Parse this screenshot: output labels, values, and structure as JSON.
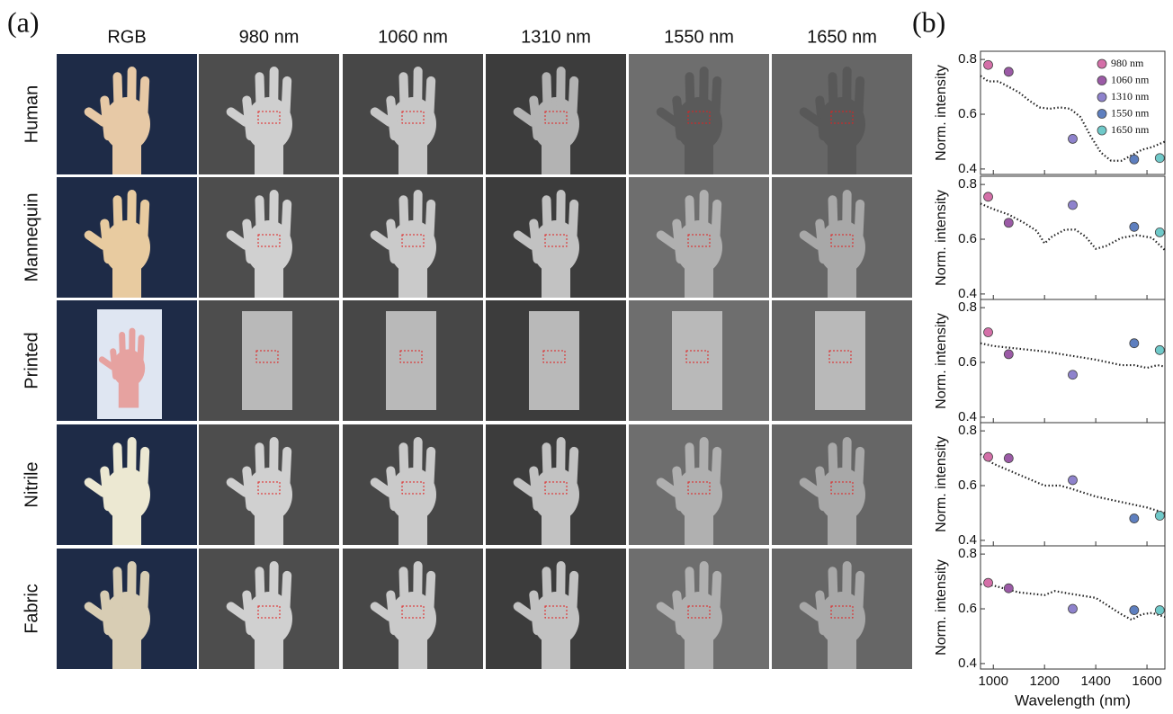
{
  "panel_a": {
    "label": "(a)",
    "columns": [
      "RGB",
      "980 nm",
      "1060 nm",
      "1310 nm",
      "1550 nm",
      "1650 nm"
    ],
    "rows": [
      "Human",
      "Mannequin",
      "Printed",
      "Nitrile",
      "Fabric"
    ]
  },
  "panel_b": {
    "label": "(b)"
  },
  "chart_data": [
    {
      "type": "scatter",
      "ylabel": "Norm. intensity",
      "xlim": [
        950,
        1670
      ],
      "xticks": [
        1000,
        1200,
        1400,
        1600
      ],
      "ylim": [
        0.38,
        0.83
      ],
      "yticks": [
        0.4,
        0.6,
        0.8
      ],
      "legend": "upper right",
      "series": [
        {
          "name": "980 nm",
          "color": "#d46fa8",
          "x": [
            980
          ],
          "values": [
            0.78
          ]
        },
        {
          "name": "1060 nm",
          "color": "#9b5aa6",
          "x": [
            1060
          ],
          "values": [
            0.755
          ]
        },
        {
          "name": "1310 nm",
          "color": "#8e82cc",
          "x": [
            1310
          ],
          "values": [
            0.51
          ]
        },
        {
          "name": "1550 nm",
          "color": "#5e7fbf",
          "x": [
            1550
          ],
          "values": [
            0.435
          ]
        },
        {
          "name": "1650 nm",
          "color": "#6fc9c9",
          "x": [
            1650
          ],
          "values": [
            0.44
          ]
        }
      ],
      "curve": {
        "color": "#222222",
        "x": [
          950,
          980,
          1020,
          1060,
          1100,
          1140,
          1180,
          1220,
          1260,
          1300,
          1340,
          1380,
          1420,
          1460,
          1500,
          1540,
          1580,
          1620,
          1670
        ],
        "values": [
          0.74,
          0.72,
          0.72,
          0.7,
          0.68,
          0.65,
          0.625,
          0.62,
          0.625,
          0.62,
          0.59,
          0.52,
          0.46,
          0.43,
          0.43,
          0.45,
          0.47,
          0.48,
          0.5
        ]
      }
    },
    {
      "type": "scatter",
      "ylabel": "Norm. intensity",
      "xlim": [
        950,
        1670
      ],
      "xticks": [
        1000,
        1200,
        1400,
        1600
      ],
      "ylim": [
        0.38,
        0.83
      ],
      "yticks": [
        0.4,
        0.6,
        0.8
      ],
      "series": [
        {
          "color": "#d46fa8",
          "x": [
            980
          ],
          "values": [
            0.755
          ]
        },
        {
          "color": "#9b5aa6",
          "x": [
            1060
          ],
          "values": [
            0.66
          ]
        },
        {
          "color": "#8e82cc",
          "x": [
            1310
          ],
          "values": [
            0.725
          ]
        },
        {
          "color": "#5e7fbf",
          "x": [
            1550
          ],
          "values": [
            0.645
          ]
        },
        {
          "color": "#6fc9c9",
          "x": [
            1650
          ],
          "values": [
            0.625
          ]
        }
      ],
      "curve": {
        "color": "#222222",
        "x": [
          950,
          1000,
          1060,
          1120,
          1170,
          1200,
          1230,
          1280,
          1320,
          1360,
          1400,
          1440,
          1500,
          1560,
          1620,
          1670
        ],
        "values": [
          0.73,
          0.71,
          0.69,
          0.66,
          0.63,
          0.585,
          0.61,
          0.635,
          0.635,
          0.61,
          0.565,
          0.575,
          0.605,
          0.615,
          0.605,
          0.56
        ]
      }
    },
    {
      "type": "scatter",
      "ylabel": "Norm. intensity",
      "xlim": [
        950,
        1670
      ],
      "xticks": [
        1000,
        1200,
        1400,
        1600
      ],
      "ylim": [
        0.38,
        0.83
      ],
      "yticks": [
        0.4,
        0.6,
        0.8
      ],
      "series": [
        {
          "color": "#d46fa8",
          "x": [
            980
          ],
          "values": [
            0.71
          ]
        },
        {
          "color": "#9b5aa6",
          "x": [
            1060
          ],
          "values": [
            0.63
          ]
        },
        {
          "color": "#8e82cc",
          "x": [
            1310
          ],
          "values": [
            0.555
          ]
        },
        {
          "color": "#5e7fbf",
          "x": [
            1550
          ],
          "values": [
            0.67
          ]
        },
        {
          "color": "#6fc9c9",
          "x": [
            1650
          ],
          "values": [
            0.645
          ]
        }
      ],
      "curve": {
        "color": "#222222",
        "x": [
          950,
          1000,
          1100,
          1200,
          1300,
          1400,
          1500,
          1550,
          1600,
          1640,
          1670
        ],
        "values": [
          0.67,
          0.66,
          0.65,
          0.64,
          0.625,
          0.61,
          0.59,
          0.59,
          0.58,
          0.59,
          0.585
        ]
      }
    },
    {
      "type": "scatter",
      "ylabel": "Norm. intensity",
      "xlim": [
        950,
        1670
      ],
      "xticks": [
        1000,
        1200,
        1400,
        1600
      ],
      "ylim": [
        0.38,
        0.83
      ],
      "yticks": [
        0.4,
        0.6,
        0.8
      ],
      "series": [
        {
          "color": "#d46fa8",
          "x": [
            980
          ],
          "values": [
            0.705
          ]
        },
        {
          "color": "#9b5aa6",
          "x": [
            1060
          ],
          "values": [
            0.7
          ]
        },
        {
          "color": "#8e82cc",
          "x": [
            1310
          ],
          "values": [
            0.62
          ]
        },
        {
          "color": "#5e7fbf",
          "x": [
            1550
          ],
          "values": [
            0.48
          ]
        },
        {
          "color": "#6fc9c9",
          "x": [
            1650
          ],
          "values": [
            0.49
          ]
        }
      ],
      "curve": {
        "color": "#222222",
        "x": [
          950,
          1000,
          1100,
          1200,
          1260,
          1300,
          1400,
          1500,
          1600,
          1670
        ],
        "values": [
          0.715,
          0.68,
          0.64,
          0.6,
          0.6,
          0.59,
          0.56,
          0.54,
          0.52,
          0.5
        ]
      }
    },
    {
      "type": "scatter",
      "ylabel": "Norm. intensity",
      "xlabel": "Wavelength (nm)",
      "xlim": [
        950,
        1670
      ],
      "xticks": [
        1000,
        1200,
        1400,
        1600
      ],
      "ylim": [
        0.38,
        0.83
      ],
      "yticks": [
        0.4,
        0.6,
        0.8
      ],
      "series": [
        {
          "color": "#d46fa8",
          "x": [
            980
          ],
          "values": [
            0.695
          ]
        },
        {
          "color": "#9b5aa6",
          "x": [
            1060
          ],
          "values": [
            0.675
          ]
        },
        {
          "color": "#8e82cc",
          "x": [
            1310
          ],
          "values": [
            0.6
          ]
        },
        {
          "color": "#5e7fbf",
          "x": [
            1550
          ],
          "values": [
            0.595
          ]
        },
        {
          "color": "#6fc9c9",
          "x": [
            1650
          ],
          "values": [
            0.595
          ]
        }
      ],
      "curve": {
        "color": "#222222",
        "x": [
          950,
          1000,
          1100,
          1200,
          1240,
          1300,
          1400,
          1500,
          1540,
          1580,
          1620,
          1670
        ],
        "values": [
          0.69,
          0.685,
          0.66,
          0.65,
          0.665,
          0.655,
          0.64,
          0.58,
          0.56,
          0.58,
          0.585,
          0.57
        ]
      }
    }
  ]
}
